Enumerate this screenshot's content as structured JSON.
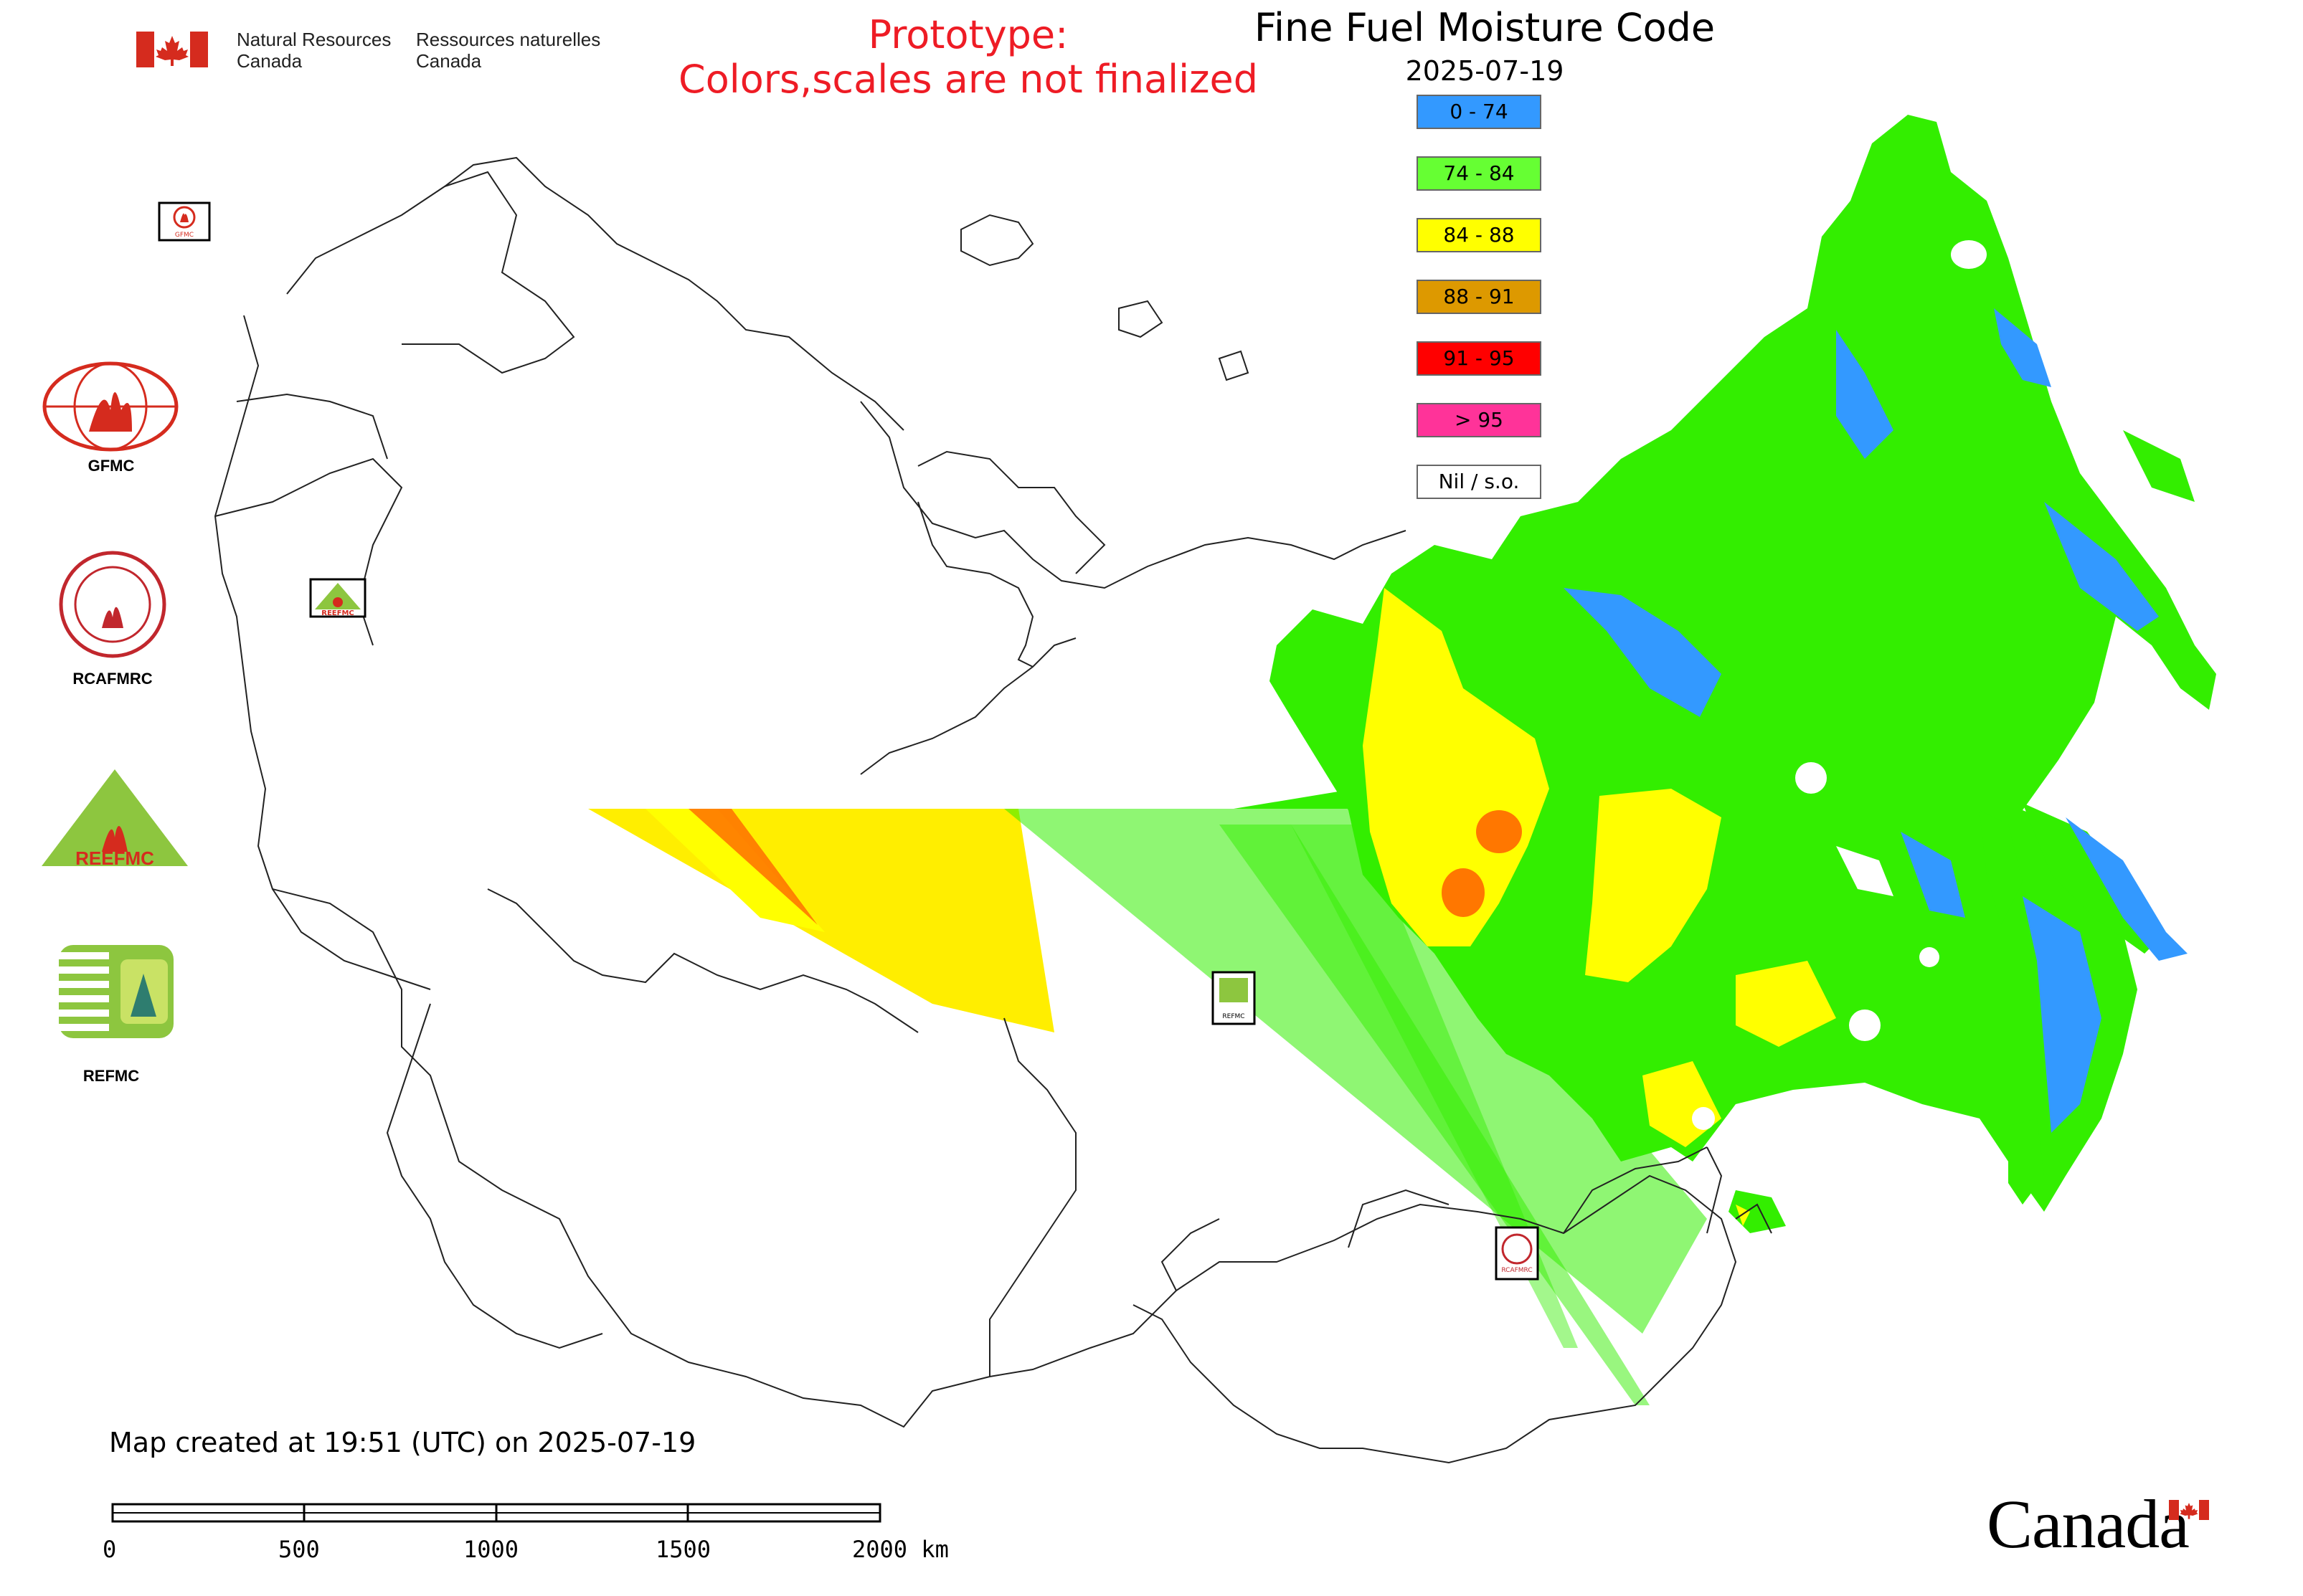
{
  "header": {
    "agency_en_line1": "Natural Resources",
    "agency_en_line2": "Canada",
    "agency_fr_line1": "Ressources naturelles",
    "agency_fr_line2": "Canada"
  },
  "prototype": {
    "line1": "Prototype:",
    "line2": "Colors,scales are not finalized"
  },
  "title": "Fine Fuel Moisture Code",
  "date": "2025-07-19",
  "legend": [
    {
      "label": "0 - 74",
      "color": "#3399ff"
    },
    {
      "label": "74 - 84",
      "color": "#66ff33"
    },
    {
      "label": "84 - 88",
      "color": "#ffff00"
    },
    {
      "label": "88 - 91",
      "color": "#dd9900"
    },
    {
      "label": "91 - 95",
      "color": "#ff0000"
    },
    {
      "label": "> 95",
      "color": "#ff3399"
    },
    {
      "label": "Nil / s.o.",
      "color": "#ffffff"
    }
  ],
  "partners": [
    {
      "name": "GFMC"
    },
    {
      "name": "RCAFMRC"
    },
    {
      "name": "REEFMC"
    },
    {
      "name": "REFMC"
    }
  ],
  "map_markers": [
    {
      "name": "GFMC"
    },
    {
      "name": "REEFMC"
    },
    {
      "name": "REFMC"
    },
    {
      "name": "RCAFMRC"
    }
  ],
  "colors": {
    "prototype_text": "#ee1c25",
    "canada_red": "#d52b1e",
    "low": "#3399ff",
    "moderate": "#33ee00",
    "high": "#ffff00",
    "very_high": "#ff7700"
  },
  "footer": {
    "created": "Map created at 19:51 (UTC) on 2025-07-19",
    "scale_ticks": [
      "0",
      "500",
      "1000",
      "1500",
      "2000 km"
    ],
    "wordmark": "Canada"
  }
}
